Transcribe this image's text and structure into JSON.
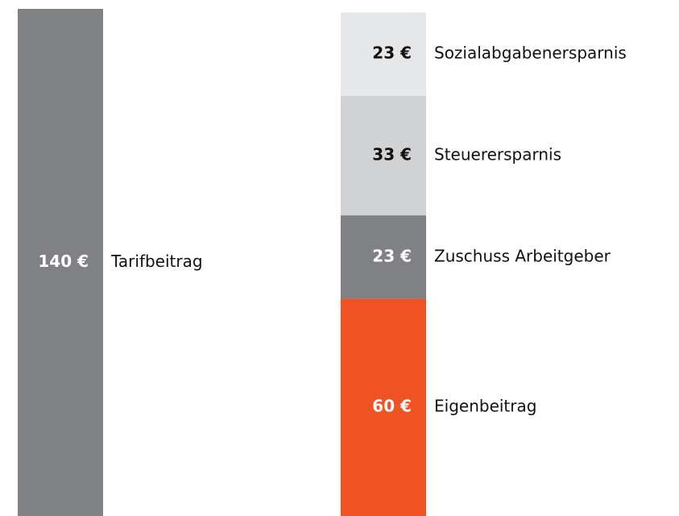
{
  "chart_data": {
    "type": "stacked_bar",
    "categories": [
      null,
      null
    ],
    "ylim": [
      0,
      140
    ],
    "series": [
      {
        "name": "Tarifbeitrag",
        "color": "#808184",
        "label_color": "#ffffff",
        "values": [
          140,
          null
        ],
        "value_labels": [
          "140 €",
          null
        ]
      },
      {
        "name": "Eigenbeitrag",
        "color": "#f05323",
        "label_color": "#ffffff",
        "values": [
          null,
          60
        ],
        "value_labels": [
          null,
          "60 €"
        ]
      },
      {
        "name": "Zuschuss Arbeitgeber",
        "color": "#808184",
        "label_color": "#ffffff",
        "values": [
          null,
          23
        ],
        "value_labels": [
          null,
          "23 €"
        ]
      },
      {
        "name": "Steuerersparnis",
        "color": "#d1d2d4",
        "label_color": "#111111",
        "values": [
          null,
          33
        ],
        "value_labels": [
          null,
          "33 €"
        ]
      },
      {
        "name": "Sozialabgabenersparnis",
        "color": "#e6e7e8",
        "label_color": "#111111",
        "values": [
          null,
          23
        ],
        "value_labels": [
          null,
          "23 €"
        ]
      }
    ]
  }
}
